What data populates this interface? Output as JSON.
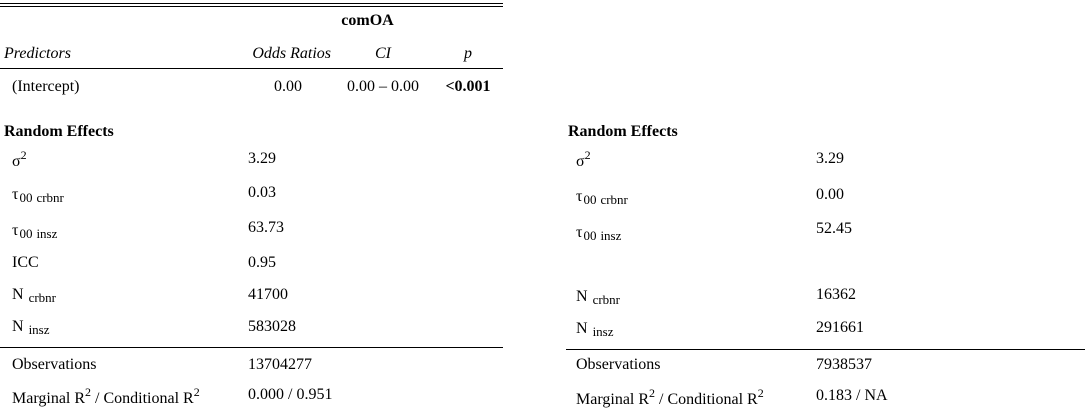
{
  "left": {
    "header": {
      "model": "comOA",
      "predictors": "Predictors",
      "odds_ratios": "Odds Ratios",
      "ci": "CI",
      "p": "p"
    },
    "intercept": {
      "label": "(Intercept)",
      "or": "0.00",
      "ci": "0.00 – 0.00",
      "p": "<0.001"
    },
    "random_effects_title": "Random Effects",
    "sigma": {
      "sym": "σ",
      "sup": "2",
      "value": "3.29"
    },
    "tau_crbnr": {
      "sym": "τ",
      "idx": "00",
      "sub": "crbnr",
      "value": "0.03"
    },
    "tau_insz": {
      "sym": "τ",
      "idx": "00",
      "sub": "insz",
      "value": "63.73"
    },
    "icc": {
      "label": "ICC",
      "value": "0.95"
    },
    "n_crbnr": {
      "sym": "N",
      "sub": "crbnr",
      "value": "41700"
    },
    "n_insz": {
      "sym": "N",
      "sub": "insz",
      "value": "583028"
    },
    "observations": {
      "label": "Observations",
      "value": "13704277"
    },
    "r2": {
      "a": "Marginal R",
      "sup1": "2",
      "b": " / Conditional R",
      "sup2": "2",
      "value": "0.000 / 0.951"
    }
  },
  "right": {
    "random_effects_title": "Random Effects",
    "sigma": {
      "sym": "σ",
      "sup": "2",
      "value": "3.29"
    },
    "tau_crbnr": {
      "sym": "τ",
      "idx": "00",
      "sub": "crbnr",
      "value": "0.00"
    },
    "tau_insz": {
      "sym": "τ",
      "idx": "00",
      "sub": "insz",
      "value": "52.45"
    },
    "n_crbnr": {
      "sym": "N",
      "sub": "crbnr",
      "value": "16362"
    },
    "n_insz": {
      "sym": "N",
      "sub": "insz",
      "value": "291661"
    },
    "observations": {
      "label": "Observations",
      "value": "7938537"
    },
    "r2": {
      "a": "Marginal R",
      "sup1": "2",
      "b": " / Conditional R",
      "sup2": "2",
      "value": "0.183 / NA"
    }
  }
}
